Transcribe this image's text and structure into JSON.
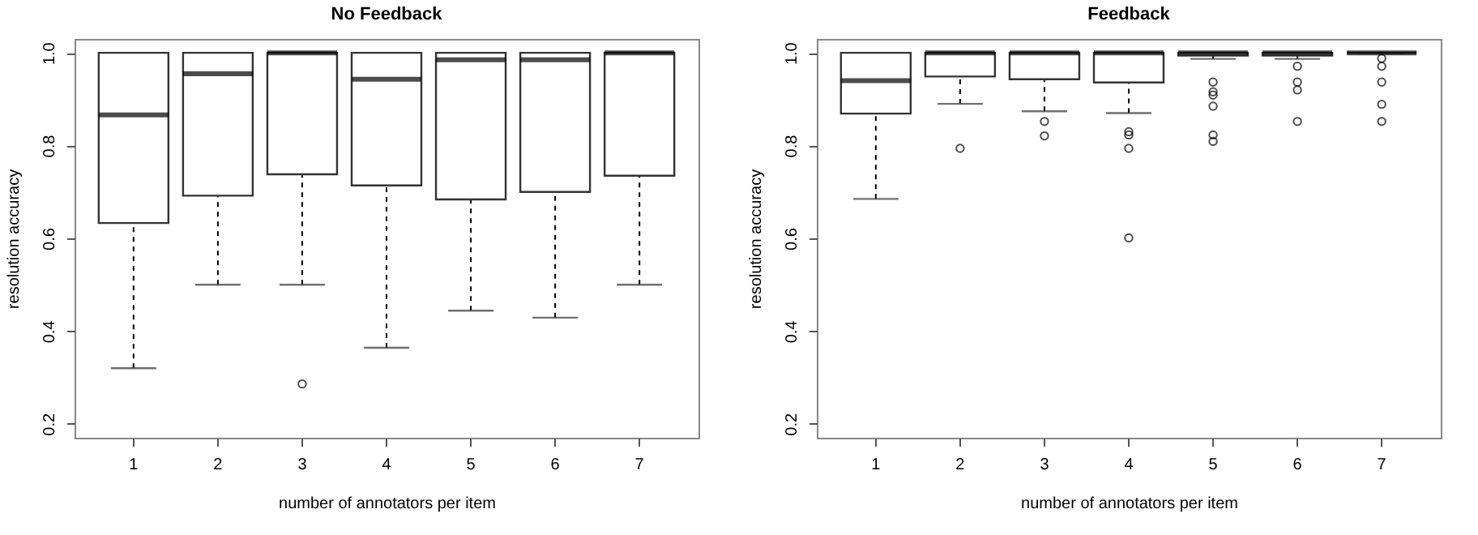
{
  "chart_data": [
    {
      "type": "box",
      "title": "No Feedback",
      "xlabel": "number of annotators per item",
      "ylabel": "resolution accuracy",
      "categories": [
        "1",
        "2",
        "3",
        "4",
        "5",
        "6",
        "7"
      ],
      "ylim": [
        0.17,
        1.03
      ],
      "yticks": [
        0.2,
        0.4,
        0.6,
        0.8,
        {
          "value": 1,
          "label": "1.0"
        }
      ],
      "grid": false,
      "marker": "circle",
      "boxes": [
        {
          "low": 0.32,
          "q1": 0.633,
          "median": 0.866,
          "q3": 1.0,
          "high": 1.0
        },
        {
          "low": 0.5,
          "q1": 0.692,
          "median": 0.955,
          "q3": 1.0,
          "high": 1.0
        },
        {
          "low": 0.5,
          "q1": 0.738,
          "median": 1.0,
          "q3": 1.0,
          "high": 1.0,
          "outliers": [
            0.286
          ]
        },
        {
          "low": 0.364,
          "q1": 0.714,
          "median": 0.943,
          "q3": 1.0,
          "high": 1.0
        },
        {
          "low": 0.444,
          "q1": 0.684,
          "median": 0.985,
          "q3": 1.0,
          "high": 1.0
        },
        {
          "low": 0.429,
          "q1": 0.7,
          "median": 0.985,
          "q3": 1.0,
          "high": 1.0
        },
        {
          "low": 0.5,
          "q1": 0.735,
          "median": 1.0,
          "q3": 1.0,
          "high": 1.0
        }
      ]
    },
    {
      "type": "box",
      "title": "Feedback",
      "xlabel": "number of annotators per item",
      "ylabel": "resolution accuracy",
      "categories": [
        "1",
        "2",
        "3",
        "4",
        "5",
        "6",
        "7"
      ],
      "ylim": [
        0.17,
        1.03
      ],
      "yticks": [
        0.2,
        0.4,
        0.6,
        0.8,
        {
          "value": 1,
          "label": "1.0"
        }
      ],
      "grid": false,
      "marker": "circle",
      "boxes": [
        {
          "low": 0.685,
          "q1": 0.869,
          "median": 0.94,
          "q3": 1.0,
          "high": 1.0
        },
        {
          "low": 0.89,
          "q1": 0.949,
          "median": 1.0,
          "q3": 1.0,
          "high": 1.0,
          "outliers": [
            0.794
          ]
        },
        {
          "low": 0.874,
          "q1": 0.943,
          "median": 1.0,
          "q3": 1.0,
          "high": 1.0,
          "outliers": [
            0.852,
            0.821
          ]
        },
        {
          "low": 0.87,
          "q1": 0.936,
          "median": 1.0,
          "q3": 1.0,
          "high": 1.0,
          "outliers": [
            0.83,
            0.823,
            0.794,
            0.601
          ]
        },
        {
          "low": 0.987,
          "q1": 0.994,
          "median": 1.0,
          "q3": 1.0,
          "high": 1.0,
          "outliers": [
            0.937,
            0.916,
            0.909,
            0.885,
            0.823,
            0.809
          ]
        },
        {
          "low": 0.987,
          "q1": 0.994,
          "median": 1.0,
          "q3": 1.0,
          "high": 1.0,
          "outliers": [
            0.971,
            0.937,
            0.92,
            0.852
          ]
        },
        {
          "low": 1.0,
          "q1": 1.0,
          "median": 1.0,
          "q3": 1.0,
          "high": 1.0,
          "outliers": [
            0.988,
            0.971,
            0.937,
            0.889,
            0.852
          ]
        }
      ]
    }
  ]
}
